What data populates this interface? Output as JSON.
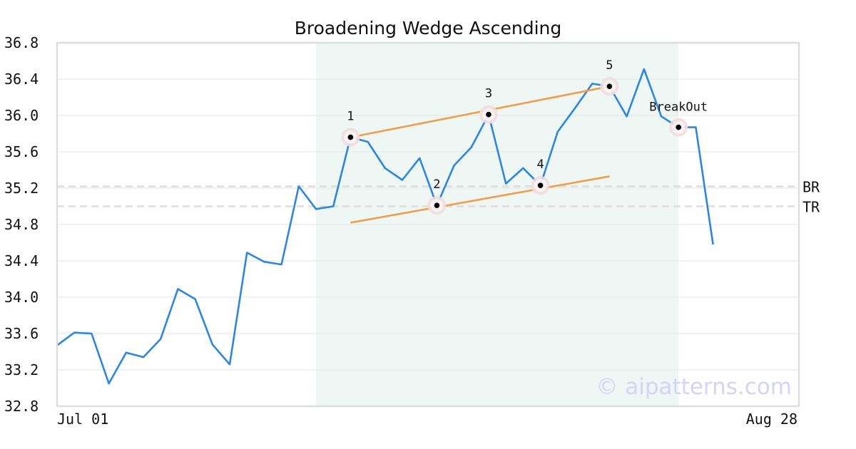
{
  "chart_data": {
    "type": "line",
    "title": "Broadening Wedge Ascending",
    "xlabel": "",
    "ylabel": "",
    "ylim": [
      32.8,
      36.8
    ],
    "yticks": [
      "32.8",
      "33.2",
      "33.6",
      "34.0",
      "34.4",
      "34.8",
      "35.2",
      "35.6",
      "36.0",
      "36.4",
      "36.8"
    ],
    "x_tick_labels": [
      "Jul 01",
      "Aug 28"
    ],
    "grid": true,
    "series": [
      {
        "values": [
          33.47,
          33.61,
          33.6,
          33.05,
          33.39,
          33.34,
          33.54,
          34.09,
          33.98,
          33.48,
          33.26,
          34.49,
          34.39,
          34.36,
          35.22,
          34.97,
          35.0,
          35.76,
          35.71,
          35.42,
          35.29,
          35.53,
          35.01,
          35.45,
          35.65,
          36.01,
          35.25,
          35.42,
          35.23,
          35.82,
          36.08,
          36.35,
          36.32,
          35.99,
          36.51,
          35.99,
          35.87,
          35.87,
          34.58
        ],
        "color": "#2e86de"
      }
    ],
    "highlight_range": {
      "start_index": 15,
      "end_index": 36,
      "color": "#eef7f4"
    },
    "reference_lines": [
      {
        "label": "BR",
        "value": 35.22
      },
      {
        "label": "TR",
        "value": 35.0
      }
    ],
    "trendlines": [
      {
        "from": {
          "index": 17,
          "value": 35.76
        },
        "to": {
          "index": 32,
          "value": 36.32
        },
        "color": "#f39c4a"
      },
      {
        "from": {
          "index": 17,
          "value": 34.82
        },
        "to": {
          "index": 32,
          "value": 35.33
        },
        "color": "#f39c4a"
      }
    ],
    "pivots": [
      {
        "label": "1",
        "index": 17,
        "value": 35.76
      },
      {
        "label": "2",
        "index": 22,
        "value": 35.01
      },
      {
        "label": "3",
        "index": 25,
        "value": 36.01
      },
      {
        "label": "4",
        "index": 28,
        "value": 35.23
      },
      {
        "label": "5",
        "index": 32,
        "value": 36.32
      },
      {
        "label": "BreakOut",
        "index": 36,
        "value": 35.87
      }
    ],
    "watermark": "© aipatterns.com",
    "colors": {
      "line": "#2e86de",
      "trendline": "#f39c4a",
      "highlight": "#eef7f4",
      "grid": "#e6e6e6",
      "reference": "#dddddd",
      "pivot_halo": "#f1dde0",
      "watermark": "#d4d4f7"
    }
  }
}
